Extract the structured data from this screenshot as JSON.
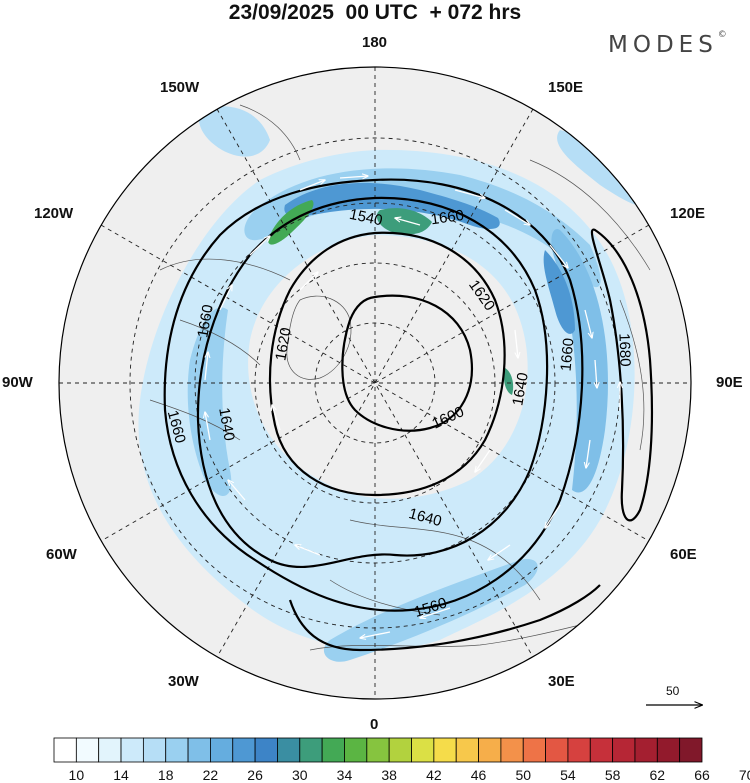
{
  "header": {
    "title": "23/09/2025  00 UTC  + 072 hrs",
    "brand": "MODES",
    "brand_mark": "©"
  },
  "map": {
    "projection": "north-polar-stereographic",
    "longitude_labels": [
      "180",
      "150E",
      "120E",
      "90E",
      "60E",
      "30E",
      "0",
      "30W",
      "60W",
      "90W",
      "120W",
      "150W"
    ],
    "contour_labels": [
      "1540",
      "1560",
      "1600",
      "1620",
      "1620",
      "1640",
      "1640",
      "1640",
      "1660",
      "1660",
      "1660",
      "1660",
      "1680"
    ],
    "wind_scale_label": "50"
  },
  "colorbar": {
    "tick_labels": [
      "10",
      "14",
      "18",
      "22",
      "26",
      "30",
      "34",
      "38",
      "42",
      "46",
      "50",
      "54",
      "58",
      "62",
      "66",
      "70"
    ],
    "colors": [
      "#ffffff",
      "#f2fbff",
      "#e2f4fc",
      "#cdeafa",
      "#b6def6",
      "#9ad0f0",
      "#7fbfe8",
      "#65addf",
      "#4e98d3",
      "#3d84c7",
      "#3a8ea2",
      "#3d9d7b",
      "#43a955",
      "#5bb543",
      "#86c43f",
      "#b2d23e",
      "#dbe045",
      "#f5dc4a",
      "#f7c84b",
      "#f6ae4a",
      "#f3914a",
      "#ee7347",
      "#e35743",
      "#d6413f",
      "#c6303a",
      "#b62635",
      "#a41f30",
      "#921a2c",
      "#80182a"
    ]
  }
}
